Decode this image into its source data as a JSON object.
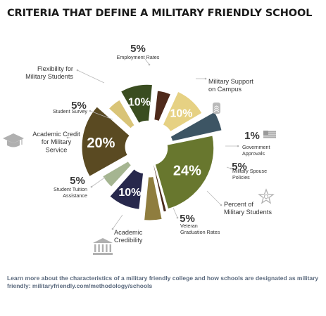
{
  "title": "CRITERIA THAT DEFINE A MILITARY FRIENDLY SCHOOL",
  "footer": {
    "text": "Learn more about the characteristics of a military friendly college and how schools are designated as military friendly:",
    "link": "militaryfriendly.com/methodology/schools"
  },
  "chart_data": {
    "type": "pie",
    "title": "CRITERIA THAT DEFINE A MILITARY FRIENDLY SCHOOL",
    "slices": [
      {
        "label": "Military Support on Campus",
        "value": 24,
        "value_label": "24%",
        "color": "#68772e",
        "icon": "dog-tag-icon"
      },
      {
        "label": "Government Approvals",
        "value": 1,
        "value_label": "1%",
        "color": "#4a2a1b",
        "icon": "us-flag-icon"
      },
      {
        "label": "Military Spouse Policies",
        "value": 5,
        "value_label": "5%",
        "color": "#8f7d3e",
        "icon": ""
      },
      {
        "label": "Percent of Military Students",
        "value": 10,
        "value_label": "10%",
        "color": "#27284c",
        "icon": "star-badge-icon"
      },
      {
        "label": "Veteran Graduation Rates",
        "value": 5,
        "value_label": "5%",
        "color": "#a5b591",
        "icon": ""
      },
      {
        "label": "Academic Credibility",
        "value": 20,
        "value_label": "20%",
        "color": "#5a4a22",
        "icon": "bank-building-icon"
      },
      {
        "label": "Student Tuition Assistance",
        "value": 5,
        "value_label": "5%",
        "color": "#d9c477",
        "icon": ""
      },
      {
        "label": "Academic Credit for Military Service",
        "value": 10,
        "value_label": "10%",
        "color": "#3a4d20",
        "icon": "graduation-cap-icon"
      },
      {
        "label": "Student Survey",
        "value": 5,
        "value_label": "5%",
        "color": "#4f2a1b",
        "icon": ""
      },
      {
        "label": "Flexibility for Military Students",
        "value": 10,
        "value_label": "10%",
        "color": "#e6d183",
        "icon": ""
      },
      {
        "label": "Employment Rates",
        "value": 5,
        "value_label": "5%",
        "color": "#3d5564",
        "icon": ""
      }
    ]
  }
}
